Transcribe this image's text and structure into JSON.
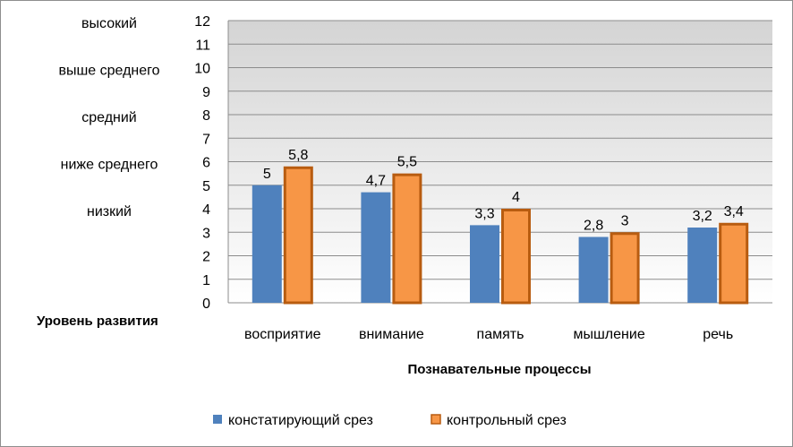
{
  "chart_data": {
    "type": "bar",
    "categories": [
      "восприятие",
      "внимание",
      "память",
      "мышление",
      "речь"
    ],
    "series": [
      {
        "name": "констатирующий срез",
        "values": [
          5,
          4.7,
          3.3,
          2.8,
          3.2
        ],
        "labels": [
          "5",
          "4,7",
          "3,3",
          "2,8",
          "3,2"
        ],
        "color": "#4f81bd"
      },
      {
        "name": "контрольный срез",
        "values": [
          5.8,
          5.5,
          4,
          3,
          3.4
        ],
        "labels": [
          "5,8",
          "5,5",
          "4",
          "3",
          "3,4"
        ],
        "color": "#f79646",
        "stroke": "#b85c10"
      }
    ],
    "ylim": [
      0,
      12
    ],
    "yticks": [
      "0",
      "1",
      "2",
      "3",
      "4",
      "5",
      "6",
      "7",
      "8",
      "9",
      "10",
      "11",
      "12"
    ],
    "ylabel": "Уровень развития",
    "xlabel": "Познавательные процессы",
    "levels": [
      "высокий",
      "выше среднего",
      "средний",
      "ниже среднего",
      "низкий"
    ],
    "level_values": [
      12,
      10,
      8,
      6,
      4
    ],
    "grid": true,
    "legend_position": "bottom",
    "plot_background": "gradient-gray"
  }
}
